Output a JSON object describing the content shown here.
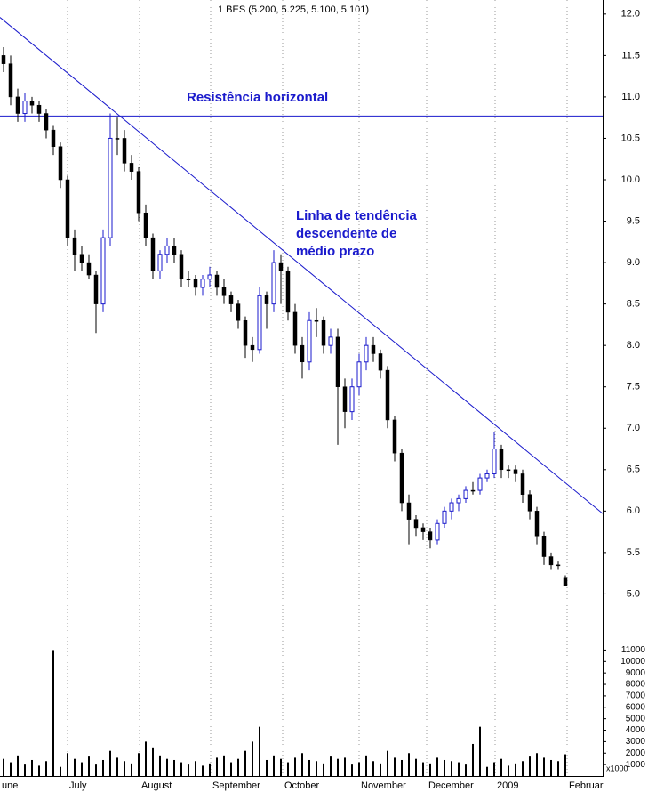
{
  "chart_data": {
    "type": "candlestick",
    "title": "1 BES (5.200, 5.225, 5.100, 5.101)",
    "categories": [
      null,
      null,
      null,
      null,
      null,
      null,
      null,
      null,
      null,
      null,
      null,
      null,
      null,
      null,
      null,
      null,
      null,
      null,
      null,
      null,
      null,
      null,
      null,
      null,
      null,
      null,
      null,
      null,
      null,
      null,
      null,
      null,
      null,
      null,
      null,
      null,
      null,
      null,
      null,
      null,
      null,
      null,
      null,
      null,
      null,
      null,
      null,
      null,
      null,
      null,
      null,
      null,
      null,
      null,
      null,
      null,
      null,
      null,
      null,
      null,
      null,
      null,
      null,
      null,
      null,
      null,
      null,
      null,
      null,
      null,
      null,
      null,
      null,
      null,
      null,
      null,
      null,
      null,
      null,
      null
    ],
    "open": [
      11.5,
      11.4,
      11.0,
      10.8,
      10.95,
      10.9,
      10.8,
      10.6,
      10.4,
      10.0,
      9.3,
      9.1,
      9.0,
      8.85,
      8.5,
      9.3,
      10.5,
      10.5,
      10.2,
      10.1,
      9.6,
      9.3,
      8.9,
      9.1,
      9.2,
      9.1,
      8.8,
      8.8,
      8.7,
      8.8,
      8.85,
      8.7,
      8.6,
      8.5,
      8.3,
      8.0,
      7.95,
      8.6,
      8.5,
      9.0,
      8.9,
      8.4,
      8.0,
      7.8,
      8.3,
      8.3,
      8.0,
      8.1,
      7.5,
      7.2,
      7.5,
      7.8,
      8.0,
      7.9,
      7.7,
      7.1,
      6.7,
      6.1,
      5.9,
      5.8,
      5.75,
      5.65,
      5.85,
      6.0,
      6.1,
      6.15,
      6.25,
      6.25,
      6.4,
      6.45,
      6.75,
      6.5,
      6.5,
      6.45,
      6.2,
      6.0,
      5.7,
      5.45,
      5.35,
      5.2
    ],
    "high": [
      11.6,
      11.5,
      11.1,
      11.05,
      11.0,
      10.95,
      10.85,
      10.65,
      10.45,
      10.05,
      9.4,
      9.2,
      9.1,
      8.9,
      9.4,
      10.8,
      10.75,
      10.6,
      10.3,
      10.15,
      9.7,
      9.35,
      9.15,
      9.3,
      9.3,
      9.15,
      8.9,
      8.85,
      8.85,
      8.95,
      8.9,
      8.8,
      8.65,
      8.55,
      8.35,
      8.1,
      8.7,
      8.65,
      9.15,
      9.1,
      8.95,
      8.5,
      8.1,
      8.4,
      8.45,
      8.35,
      8.2,
      8.2,
      7.6,
      7.6,
      7.9,
      8.1,
      8.1,
      7.95,
      7.75,
      7.15,
      6.75,
      6.2,
      5.95,
      5.85,
      5.8,
      5.9,
      6.05,
      6.15,
      6.2,
      6.3,
      6.35,
      6.45,
      6.5,
      6.95,
      6.8,
      6.55,
      6.55,
      6.5,
      6.25,
      6.05,
      5.75,
      5.5,
      5.4,
      5.225
    ],
    "low": [
      11.3,
      10.9,
      10.7,
      10.7,
      10.8,
      10.7,
      10.5,
      10.3,
      9.9,
      9.2,
      8.9,
      8.9,
      8.8,
      8.15,
      8.4,
      9.2,
      10.3,
      10.1,
      10.0,
      9.5,
      9.2,
      8.8,
      8.8,
      9.0,
      9.0,
      8.7,
      8.7,
      8.6,
      8.6,
      8.7,
      8.6,
      8.5,
      8.4,
      8.2,
      7.85,
      7.8,
      7.9,
      8.2,
      8.4,
      8.5,
      8.3,
      7.9,
      7.6,
      7.7,
      8.1,
      7.9,
      7.9,
      6.8,
      7.0,
      7.1,
      7.4,
      7.7,
      7.8,
      7.6,
      7.0,
      6.6,
      6.0,
      5.6,
      5.7,
      5.65,
      5.55,
      5.6,
      5.8,
      5.9,
      6.0,
      6.1,
      6.2,
      6.2,
      6.35,
      6.4,
      6.4,
      6.4,
      6.35,
      6.1,
      5.9,
      5.6,
      5.35,
      5.3,
      5.3,
      5.1
    ],
    "close": [
      11.4,
      11.0,
      10.8,
      10.95,
      10.9,
      10.8,
      10.6,
      10.4,
      10.0,
      9.3,
      9.1,
      9.0,
      8.85,
      8.5,
      9.3,
      10.5,
      10.5,
      10.2,
      10.1,
      9.6,
      9.3,
      8.9,
      9.1,
      9.2,
      9.1,
      8.8,
      8.8,
      8.7,
      8.8,
      8.85,
      8.7,
      8.6,
      8.5,
      8.3,
      8.0,
      7.95,
      8.6,
      8.5,
      9.0,
      8.9,
      8.4,
      8.0,
      7.8,
      8.3,
      8.3,
      8.0,
      8.1,
      7.5,
      7.2,
      7.5,
      7.8,
      8.0,
      7.9,
      7.7,
      7.1,
      6.7,
      6.1,
      5.9,
      5.8,
      5.75,
      5.65,
      5.85,
      6.0,
      6.1,
      6.15,
      6.25,
      6.25,
      6.4,
      6.45,
      6.75,
      6.5,
      6.5,
      6.45,
      6.2,
      6.0,
      5.7,
      5.45,
      5.35,
      5.35,
      5.101
    ],
    "up_color": "#1a1acc",
    "down_color": "#000000",
    "volume": [
      1500,
      1200,
      1800,
      1000,
      1400,
      900,
      1300,
      11000,
      800,
      2000,
      1500,
      1200,
      1700,
      1000,
      1400,
      2200,
      1600,
      1300,
      1100,
      2000,
      3000,
      2500,
      1800,
      1500,
      1400,
      1200,
      1000,
      1300,
      900,
      1100,
      1600,
      1800,
      1200,
      1500,
      2200,
      3000,
      4300,
      1400,
      1800,
      1500,
      1200,
      1600,
      2000,
      1400,
      1300,
      1100,
      1700,
      1500,
      1600,
      1000,
      1200,
      1800,
      1300,
      1100,
      2200,
      1600,
      1400,
      2000,
      1500,
      1200,
      1100,
      1600,
      1400,
      1300,
      1200,
      1000,
      2800,
      4300,
      800,
      1200,
      1500,
      900,
      1100,
      1300,
      1700,
      2000,
      1600,
      1400,
      1300,
      1900
    ],
    "volume_color": "#000000",
    "volume_unit": "x1000",
    "xlim": [
      -0.5,
      84.25
    ],
    "xticks": [
      {
        "value": -0.5,
        "label": "une"
      },
      {
        "value": 9,
        "label": "July"
      },
      {
        "value": 19.125,
        "label": "August"
      },
      {
        "value": 29.125,
        "label": "September"
      },
      {
        "value": 39.25,
        "label": "October"
      },
      {
        "value": 50,
        "label": "November"
      },
      {
        "value": 59.5,
        "label": "December"
      },
      {
        "value": 69.125,
        "label": "2009"
      },
      {
        "value": 79.25,
        "label": "Februar"
      }
    ],
    "ylim": [
      4.65,
      12.17
    ],
    "yticks": [
      {
        "value": 12,
        "label": "12.0"
      },
      11.5,
      {
        "value": 11,
        "label": "11.0"
      },
      10.5,
      {
        "value": 10,
        "label": "10.0"
      },
      9.5,
      {
        "value": 9,
        "label": "9.0"
      },
      8.5,
      {
        "value": 8,
        "label": "8.0"
      },
      7.5,
      {
        "value": 7,
        "label": "7.0"
      },
      6.5,
      {
        "value": 6,
        "label": "6.0"
      },
      5.5,
      {
        "value": 5,
        "label": "5.0"
      }
    ],
    "volume_ylim": [
      0,
      11500
    ],
    "volume_yticks": [
      1000,
      2000,
      3000,
      4000,
      5000,
      6000,
      7000,
      8000,
      9000,
      10000,
      11000
    ],
    "resistance": {
      "label": "Resistência horizontal",
      "value": 10.77
    },
    "trendline": {
      "label": [
        "Linha de tendência",
        "descendente de",
        "médio prazo"
      ],
      "x": [
        -0.5,
        84.25
      ],
      "y": [
        11.96,
        5.97
      ]
    },
    "line_color": "#1a1acc",
    "grid": true
  }
}
